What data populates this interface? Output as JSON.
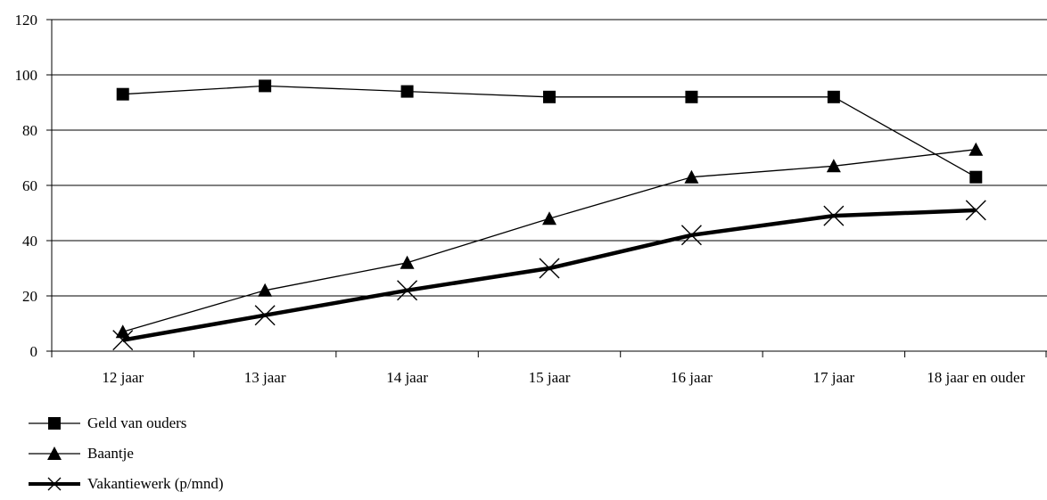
{
  "chart_data": {
    "type": "line",
    "title": "",
    "xlabel": "",
    "ylabel": "",
    "categories": [
      "12 jaar",
      "13 jaar",
      "14 jaar",
      "15 jaar",
      "16 jaar",
      "17 jaar",
      "18 jaar en ouder"
    ],
    "ylim": [
      0,
      120
    ],
    "yticks": [
      0,
      20,
      40,
      60,
      80,
      100,
      120
    ],
    "grid": "horizontal",
    "legend_position": "bottom-left",
    "series": [
      {
        "name": "Geld van ouders",
        "marker": "square",
        "color": "#000000",
        "values": [
          93,
          96,
          94,
          92,
          92,
          92,
          63
        ]
      },
      {
        "name": "Baantje",
        "marker": "triangle",
        "color": "#000000",
        "values": [
          7,
          22,
          32,
          48,
          63,
          67,
          73
        ]
      },
      {
        "name": "Vakantiewerk (p/mnd)",
        "marker": "x",
        "color": "#000000",
        "values": [
          4,
          13,
          22,
          30,
          42,
          49,
          51
        ]
      }
    ]
  }
}
